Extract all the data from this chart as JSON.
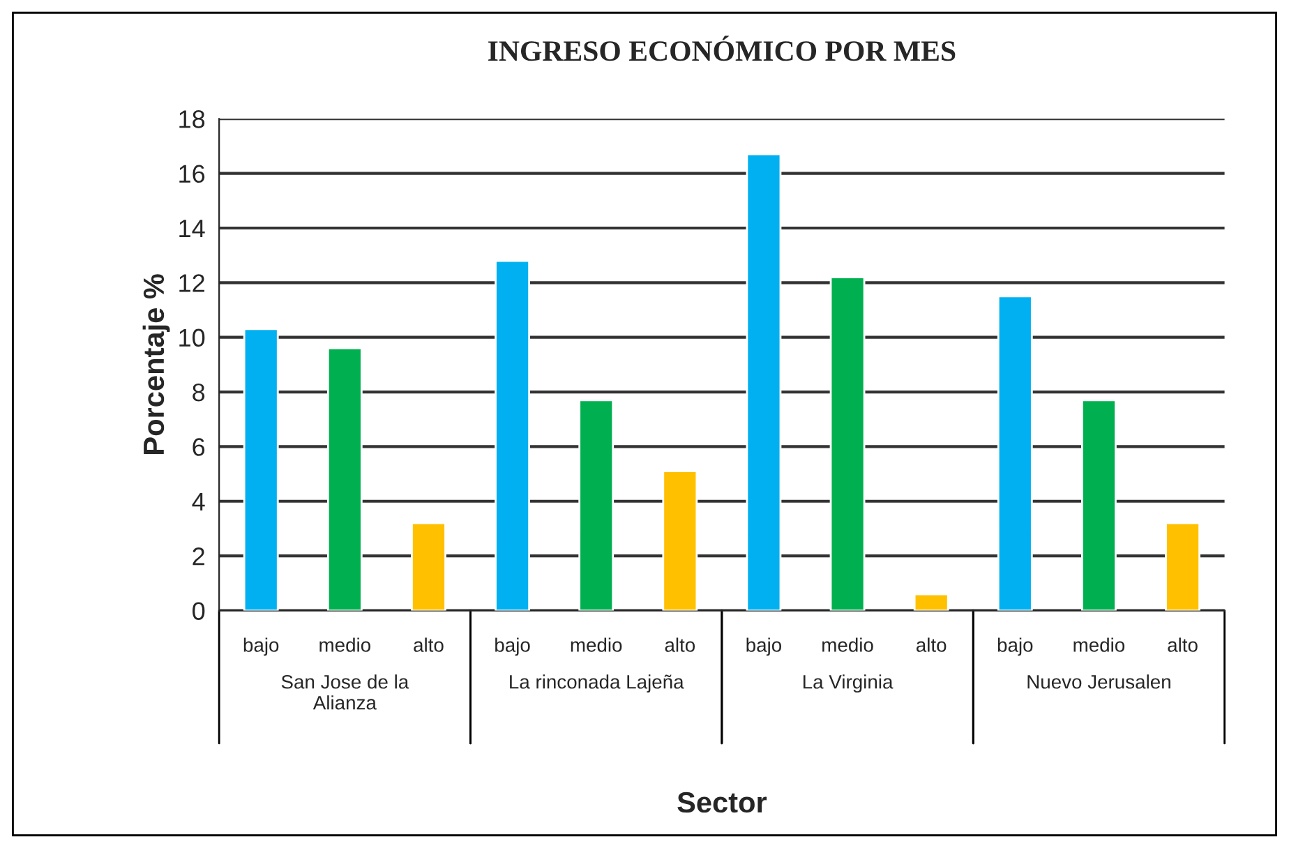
{
  "chart_data": {
    "type": "bar",
    "title": "INGRESO ECONÓMICO POR MES",
    "xlabel": "Sector",
    "ylabel": "Porcentaje %",
    "categories": [
      "bajo",
      "medio",
      "alto",
      "bajo",
      "medio",
      "alto",
      "bajo",
      "medio",
      "alto",
      "bajo",
      "medio",
      "alto"
    ],
    "values": [
      10.3,
      9.6,
      3.2,
      12.8,
      7.7,
      5.1,
      16.7,
      12.2,
      0.6,
      11.5,
      7.7,
      3.2
    ],
    "colors": [
      "#00b0f0",
      "#00b050",
      "#ffc000",
      "#00b0f0",
      "#00b050",
      "#ffc000",
      "#00b0f0",
      "#00b050",
      "#ffc000",
      "#00b0f0",
      "#00b050",
      "#ffc000"
    ],
    "annotations": [
      "San Jose de la\nAlianza",
      "La rinconada Lajeña",
      "La Virginia",
      "Nuevo Jerusalen"
    ],
    "ylim": [
      0,
      18
    ],
    "yticks": [
      0,
      2,
      4,
      6,
      8,
      10,
      12,
      14,
      16,
      18
    ],
    "grid": "y",
    "legend": false
  }
}
